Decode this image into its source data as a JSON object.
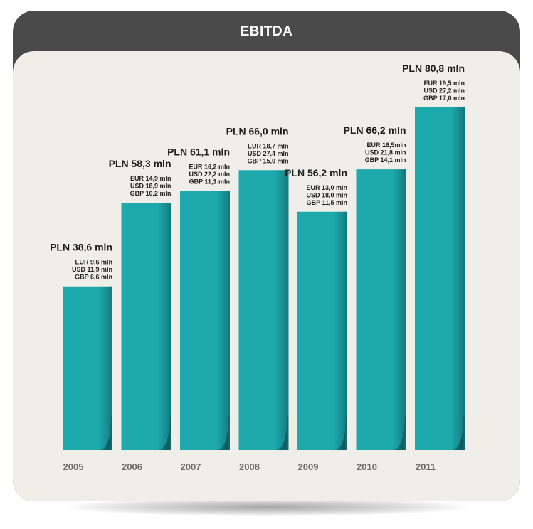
{
  "chart_data": {
    "type": "bar",
    "title": "EBITDA",
    "categories": [
      "2005",
      "2006",
      "2007",
      "2008",
      "2009",
      "2010",
      "2011"
    ],
    "values": [
      38.6,
      58.3,
      61.1,
      66.0,
      56.2,
      66.2,
      80.8
    ],
    "labels": [
      {
        "main": "PLN 38,6 mln",
        "sub": [
          "EUR 9,6 mln",
          "USD 11,9 mln",
          "GBP 6,6 mln"
        ]
      },
      {
        "main": "PLN 58,3 mln",
        "sub": [
          "EUR 14,9 mln",
          "USD 18,9 mln",
          "GBP 10,2 mln"
        ]
      },
      {
        "main": "PLN 61,1 mln",
        "sub": [
          "EUR 16,2 mln",
          "USD 22,2 mln",
          "GBP 11,1 mln"
        ]
      },
      {
        "main": "PLN 66,0 mln",
        "sub": [
          "EUR 18,7 mln",
          "USD 27,4 mln",
          "GBP 15,0 mln"
        ]
      },
      {
        "main": "PLN 56,2 mln",
        "sub": [
          "EUR 13,0 mln",
          "USD 18,0 mln",
          "GBP 11,5 mln"
        ]
      },
      {
        "main": "PLN 66,2 mln",
        "sub": [
          "EUR 16,5mln",
          "USD 21,8 mln",
          "GBP 14,1 mln"
        ]
      },
      {
        "main": "PLN 80,8 mln",
        "sub": [
          "EUR 19,5 mln",
          "USD 27,2 mln",
          "GBP 17,0 mln"
        ]
      }
    ],
    "unit": "PLN mln",
    "ylim": [
      0,
      86
    ],
    "grid": false,
    "legend": "none",
    "colors": {
      "bar": "#1eaaad",
      "bar_shade": "#137a7e",
      "header": "#4a4a4b",
      "panel": "#efeee9"
    }
  }
}
